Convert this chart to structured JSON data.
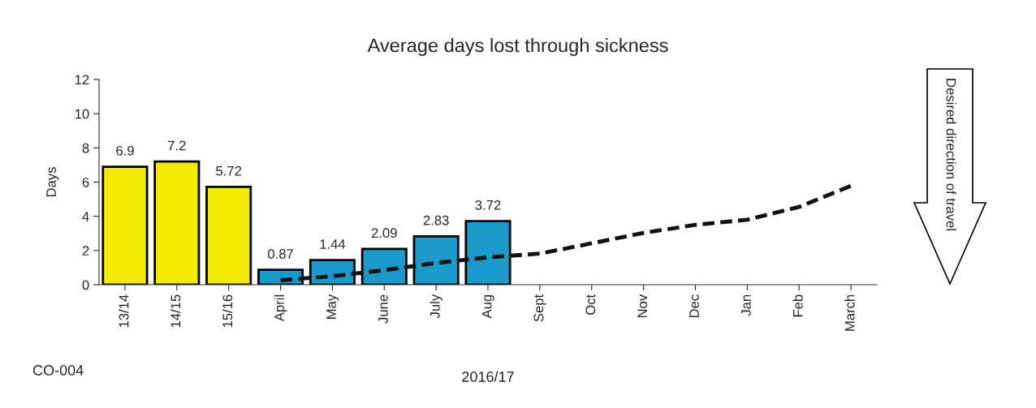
{
  "chart_data": {
    "type": "bar",
    "title": "Average days lost through sickness",
    "xlabel": "2016/17",
    "ylabel": "Days",
    "categories": [
      "13/14",
      "14/15",
      "15/16",
      "April",
      "May",
      "June",
      "July",
      "Aug",
      "Sept",
      "Oct",
      "Nov",
      "Dec",
      "Jan",
      "Feb",
      "March"
    ],
    "series": [
      {
        "values": [
          6.9,
          7.2,
          5.72,
          0.87,
          1.44,
          2.09,
          2.83,
          3.72,
          null,
          null,
          null,
          null,
          null,
          null,
          null
        ],
        "colors": [
          "#f2ec00",
          "#f2ec00",
          "#f2ec00",
          "#1a9ac9",
          "#1a9ac9",
          "#1a9ac9",
          "#1a9ac9",
          "#1a9ac9",
          null,
          null,
          null,
          null,
          null,
          null,
          null
        ],
        "value_labels": [
          "6.9",
          "7.2",
          "5.72",
          "0.87",
          "1.44",
          "2.09",
          "2.83",
          "3.72",
          null,
          null,
          null,
          null,
          null,
          null,
          null
        ]
      },
      {
        "type": "line",
        "color": "#111111",
        "line_style": "dashed",
        "marker": "none",
        "values": [
          null,
          null,
          null,
          0.26,
          0.5,
          0.85,
          1.27,
          1.6,
          1.82,
          2.42,
          3.03,
          3.5,
          3.8,
          4.55,
          5.78
        ]
      }
    ],
    "ylim": [
      0,
      12
    ],
    "yticks": [
      0,
      2,
      4,
      6,
      8,
      10,
      12
    ],
    "grid": false,
    "annotations": [
      "Desired direction of travel",
      "CO-004"
    ]
  }
}
